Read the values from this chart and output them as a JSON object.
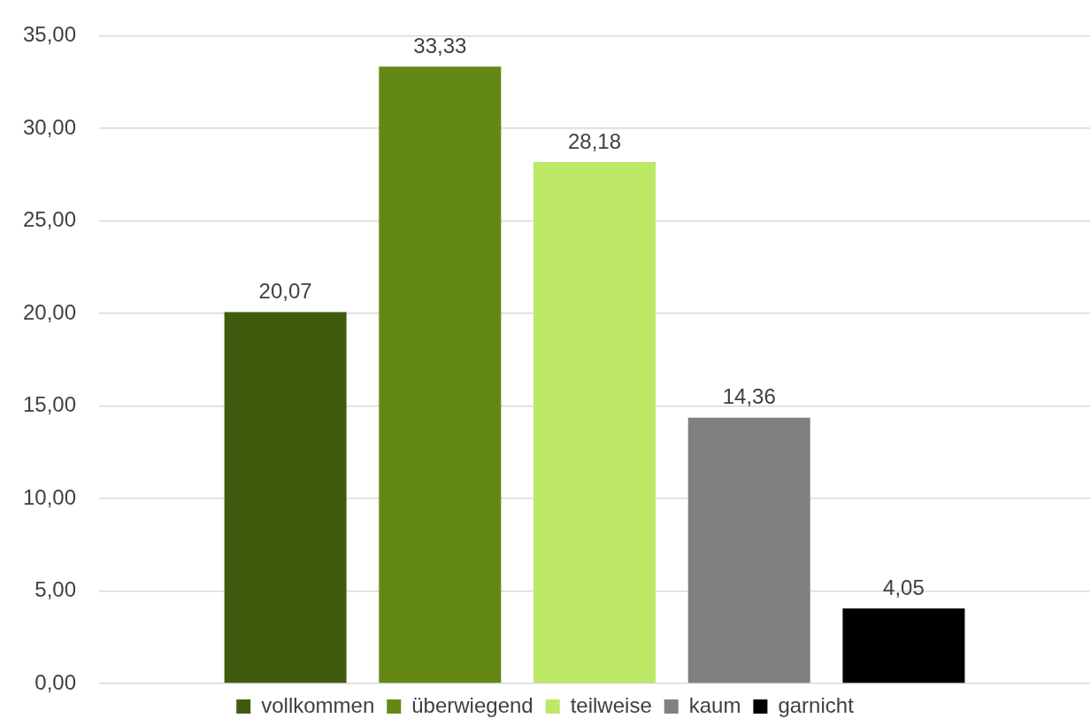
{
  "chart_data": {
    "type": "bar",
    "categories": [
      null
    ],
    "series": [
      {
        "name": "vollkommen",
        "color": "#3f5c0e",
        "values": [
          20.07
        ],
        "value_labels": [
          "20,07"
        ]
      },
      {
        "name": "überwiegend",
        "color": "#638914",
        "values": [
          33.33
        ],
        "value_labels": [
          "33,33"
        ]
      },
      {
        "name": "teilweise",
        "color": "#bce865",
        "values": [
          28.18
        ],
        "value_labels": [
          "28,18"
        ]
      },
      {
        "name": "kaum",
        "color": "#808080",
        "values": [
          14.36
        ],
        "value_labels": [
          "14,36"
        ]
      },
      {
        "name": "garnicht",
        "color": "#000000",
        "values": [
          4.05
        ],
        "value_labels": [
          "4,05"
        ]
      }
    ],
    "ylim": [
      0,
      35
    ],
    "yticks": [
      {
        "value": 0,
        "label": "0,00"
      },
      {
        "value": 5,
        "label": "5,00"
      },
      {
        "value": 10,
        "label": "10,00"
      },
      {
        "value": 15,
        "label": "15,00"
      },
      {
        "value": 20,
        "label": "20,00"
      },
      {
        "value": 25,
        "label": "25,00"
      },
      {
        "value": 30,
        "label": "30,00"
      },
      {
        "value": 35,
        "label": "35,00"
      }
    ],
    "grid": "y",
    "legend": "bottom"
  }
}
